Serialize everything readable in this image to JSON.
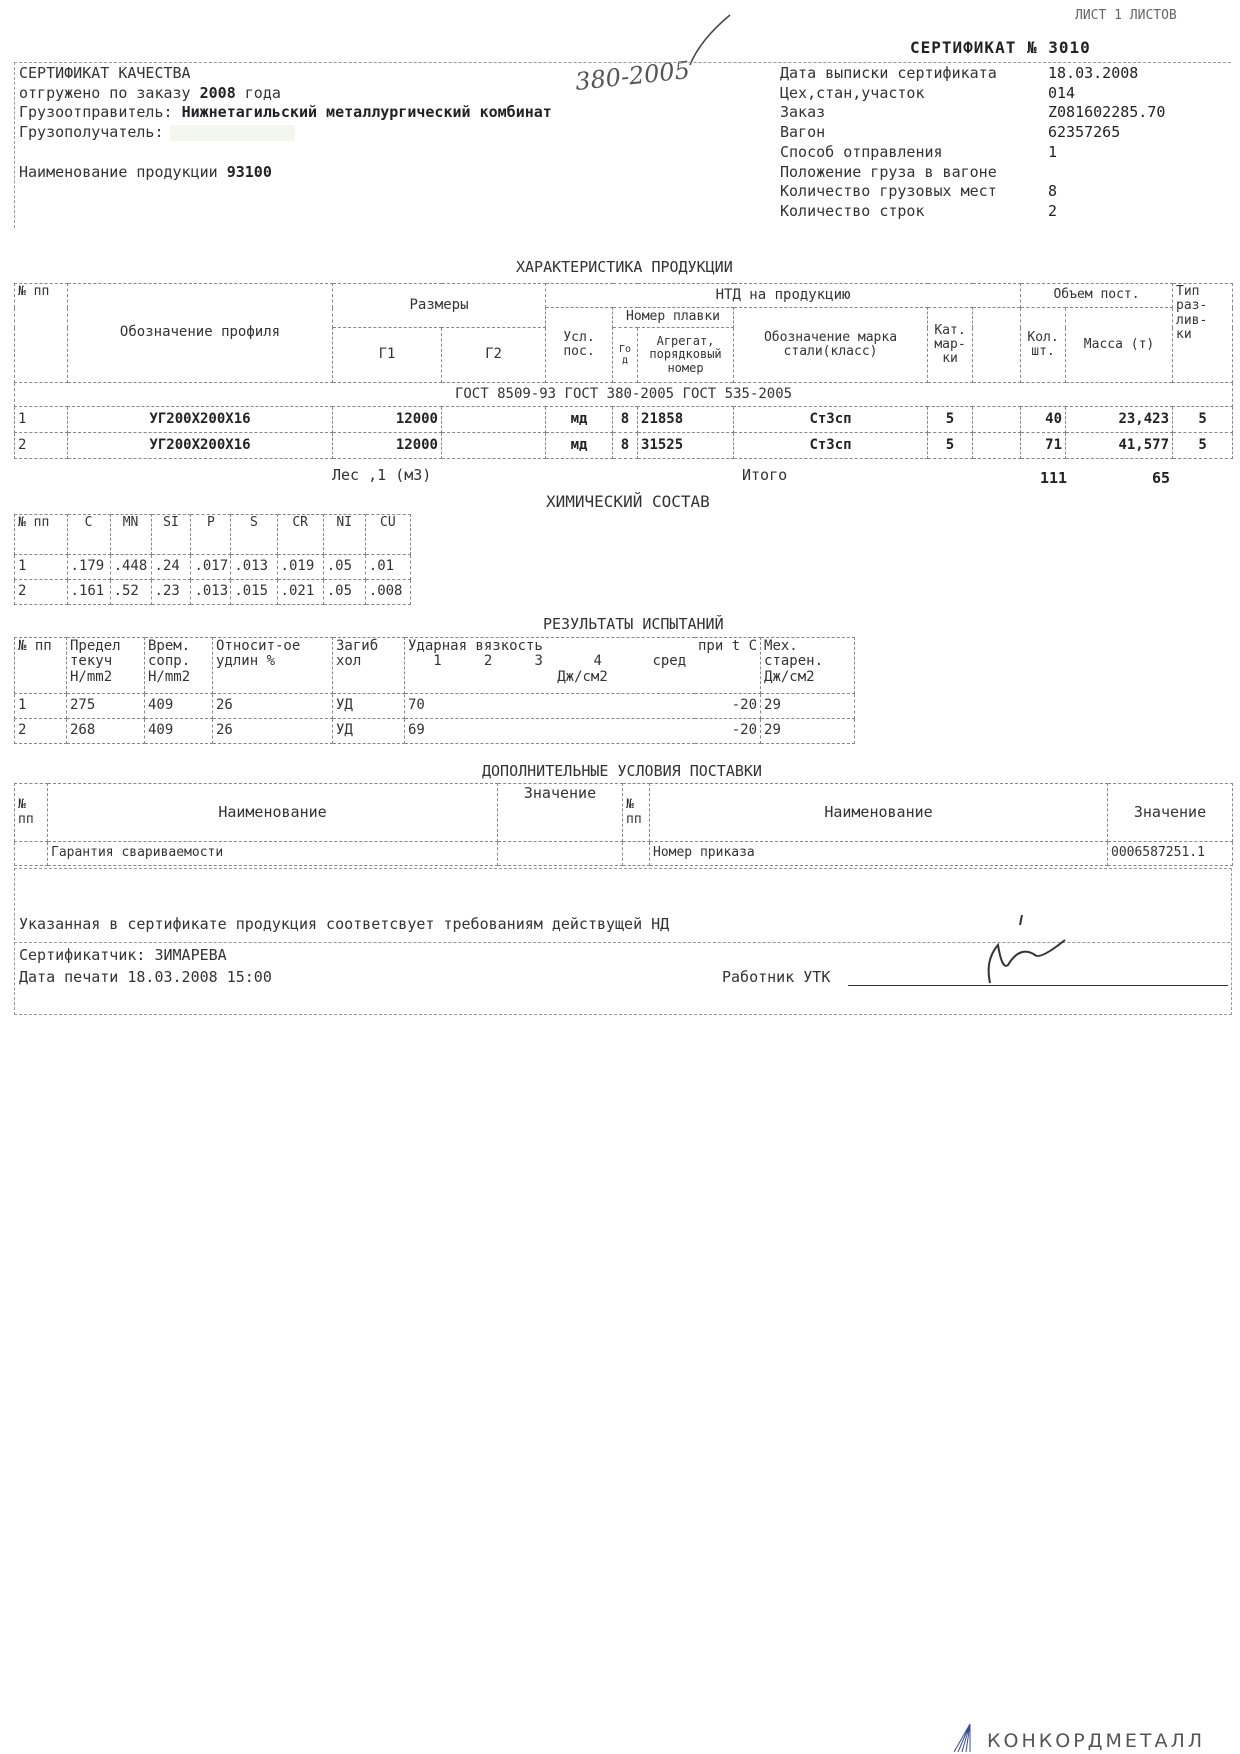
{
  "sheet_label": "ЛИСТ 1  ЛИСТОВ",
  "certificate_title": "СЕРТИФИКАТ №  3010",
  "handwritten_note": "380-2005",
  "header_left": {
    "line1": "СЕРТИФИКАТ КАЧЕСТВА",
    "line2_label": "отгружено по заказу",
    "line2_year": "2008",
    "line2_suffix": "года",
    "shipper_label": "Грузоотправитель:",
    "shipper": "Нижнетагильский металлургический комбинат",
    "consignee_label": "Грузополучатель:",
    "product_label": "Наименование продукции",
    "product_code": "93100"
  },
  "header_right": [
    {
      "label": "Дата выписки сертификата",
      "value": "18.03.2008"
    },
    {
      "label": "Цех,стан,участок",
      "value": "014"
    },
    {
      "label": "Заказ",
      "value": "Z081602285.70"
    },
    {
      "label": "Вагон",
      "value": "62357265"
    },
    {
      "label": "Способ отправления",
      "value": "1"
    },
    {
      "label": "Положение груза в вагоне",
      "value": ""
    },
    {
      "label": "Количество грузовых мест",
      "value": "8"
    },
    {
      "label": "Количество строк",
      "value": "2"
    }
  ],
  "product": {
    "title": "ХАРАКТЕРИСТИКА ПРОДУКЦИИ",
    "headers": {
      "num": "№ пп",
      "profile": "Обозначение профиля",
      "sizes": "Размеры",
      "g1": "Г1",
      "g2": "Г2",
      "ntd": "НТД на продукцию",
      "usl": "Усл. пос.",
      "heat": "Номер плавки",
      "year": "Год",
      "aggregate": "Агрегат, порядковый номер",
      "grade": "Обозначение марка стали(класс)",
      "cat": "Кат. мар- ки",
      "volume": "Объем пост.",
      "qty": "Кол. шт.",
      "mass": "Масса (т)",
      "cast_type": "Тип раз- лив- ки"
    },
    "standards": "ГОСТ 8509-93   ГОСТ 380-2005 ГОСТ 535-2005",
    "rows": [
      {
        "n": "1",
        "profile": "УГ200Х200Х16",
        "g1": "12000",
        "g2": "",
        "usl": "мд",
        "year": "8",
        "heat": "21858",
        "grade": "Ст3сп",
        "cat": "5",
        "extra": "",
        "qty": "40",
        "mass": "23,423",
        "type": "5"
      },
      {
        "n": "2",
        "profile": "УГ200Х200Х16",
        "g1": "12000",
        "g2": "",
        "usl": "мд",
        "year": "8",
        "heat": "31525",
        "grade": "Ст3сп",
        "cat": "5",
        "extra": "",
        "qty": "71",
        "mass": "41,577",
        "type": "5"
      }
    ],
    "wood": "Лес ,1 (м3)",
    "total_label": "Итого",
    "total_qty": "111",
    "total_mass": "65"
  },
  "chemistry": {
    "title": "ХИМИЧЕСКИЙ СОСТАВ",
    "headers": [
      "№ пп",
      "C",
      "MN",
      "SI",
      "P",
      "S",
      "CR",
      "NI",
      "CU"
    ],
    "rows": [
      [
        "1",
        ".179",
        ".448",
        ".24",
        ".017",
        ".013",
        ".019",
        ".05",
        ".01"
      ],
      [
        "2",
        ".161",
        ".52",
        ".23",
        ".013",
        ".015",
        ".021",
        ".05",
        ".008"
      ]
    ]
  },
  "tests": {
    "title": "РЕЗУЛЬТАТЫ ИСПЫТАНИЙ",
    "headers": {
      "num": "№ пп",
      "yield": "Предел текуч Н/mm2",
      "tensile": "Врем. сопр. Н/mm2",
      "elong": "Относит-ое удлин %",
      "bend": "Загиб хол",
      "impact": "Ударная вязкость",
      "impact_cols": "1     2     3      4      сред",
      "impact_unit": "Дж/см2",
      "temp": "при t C",
      "aging": "Мех. старен. Дж/см2"
    },
    "rows": [
      {
        "n": "1",
        "yield": "275",
        "tensile": "409",
        "elong": "26",
        "bend": "УД",
        "impact": "70",
        "temp": "-20",
        "aging": "29"
      },
      {
        "n": "2",
        "yield": "268",
        "tensile": "409",
        "elong": "26",
        "bend": "УД",
        "impact": "69",
        "temp": "-20",
        "aging": "29"
      }
    ]
  },
  "additional": {
    "title": "ДОПОЛНИТЕЛЬНЫЕ УСЛОВИЯ ПОСТАВКИ",
    "num": "№ пп",
    "name": "Наименование",
    "value": "Значение",
    "left_item": "Гарантия свариваемости",
    "left_value": "",
    "right_item": "Номер приказа",
    "right_value": "0006587251.1"
  },
  "footer": {
    "conformity": "Указанная в сертификате продукция соответсвует требованиям действущей НД",
    "certifier_label": "Сертификатчик:",
    "certifier": "ЗИМАРЕВА",
    "print_date": "Дата печати 18.03.2008 15:00",
    "inspector": "Работник УТК"
  },
  "logo_text": "КОНКОРДМЕТАЛЛ"
}
